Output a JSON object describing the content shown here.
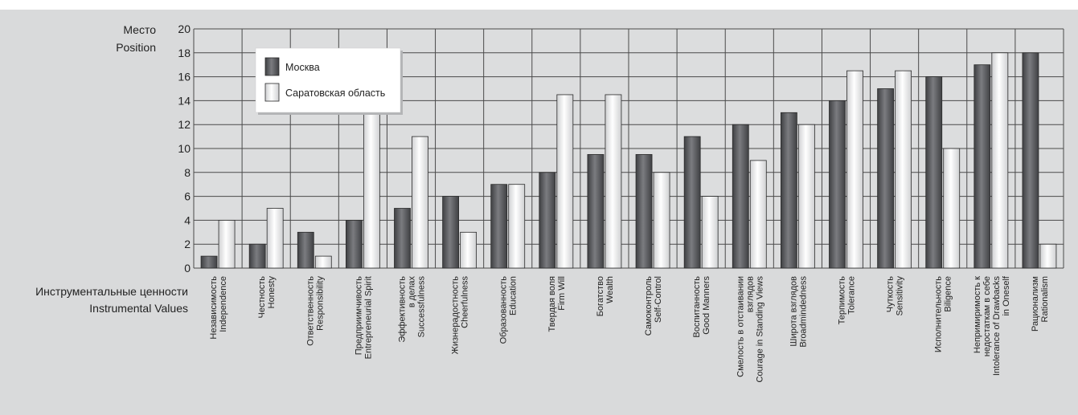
{
  "chart_data": {
    "type": "bar",
    "ylabel": [
      "Место",
      "Position"
    ],
    "xlabel": [
      "Инструментальные ценности",
      "Instrumental Values"
    ],
    "ylim": [
      0,
      20
    ],
    "yticks": [
      0,
      2,
      4,
      6,
      8,
      10,
      12,
      14,
      16,
      18,
      20
    ],
    "grid": true,
    "legend_position": "top-left",
    "categories": [
      [
        "Независимость",
        "Independence"
      ],
      [
        "Честность",
        "Honesty"
      ],
      [
        "Ответственность",
        "Responsibility"
      ],
      [
        "Предприимчивость",
        "Entrepreneurial Spirit"
      ],
      [
        "Эффективность",
        "в делах",
        "Successfulness"
      ],
      [
        "Жизнерадостность",
        "Cheerfulness"
      ],
      [
        "Образованность",
        "Education"
      ],
      [
        "Твердая воля",
        "Firm Will"
      ],
      [
        "Богатство",
        "Wealth"
      ],
      [
        "Самоконтроль",
        "Self-Control"
      ],
      [
        "Воспитанность",
        "Good Manners"
      ],
      [
        "Смелость в отстаивании",
        "взглядов",
        "Courage in Standing Views"
      ],
      [
        "Широта взглядов",
        "Broadmindedness"
      ],
      [
        "Терпимость",
        "Tolerance"
      ],
      [
        "Чуткость",
        "Sensitivity"
      ],
      [
        "Исполнительность",
        "Biligence"
      ],
      [
        "Непримиримость к",
        "недостаткам в себе",
        "Intolerance of Drawbacks",
        "in Oneself"
      ],
      [
        "Рационализм",
        "Rationalism"
      ]
    ],
    "series": [
      {
        "name": "Москва",
        "color": "#5a5b5e",
        "values": [
          1,
          2,
          3,
          4,
          5,
          6,
          7,
          8,
          9.5,
          9.5,
          11,
          12,
          13,
          14,
          15,
          16,
          17,
          18
        ]
      },
      {
        "name": "Саратовская область",
        "color": "#f4f4f4",
        "values": [
          4,
          5,
          1,
          13,
          11,
          3,
          7,
          14.5,
          14.5,
          8,
          6,
          9,
          12,
          16.5,
          16.5,
          10,
          18,
          2
        ]
      }
    ]
  }
}
